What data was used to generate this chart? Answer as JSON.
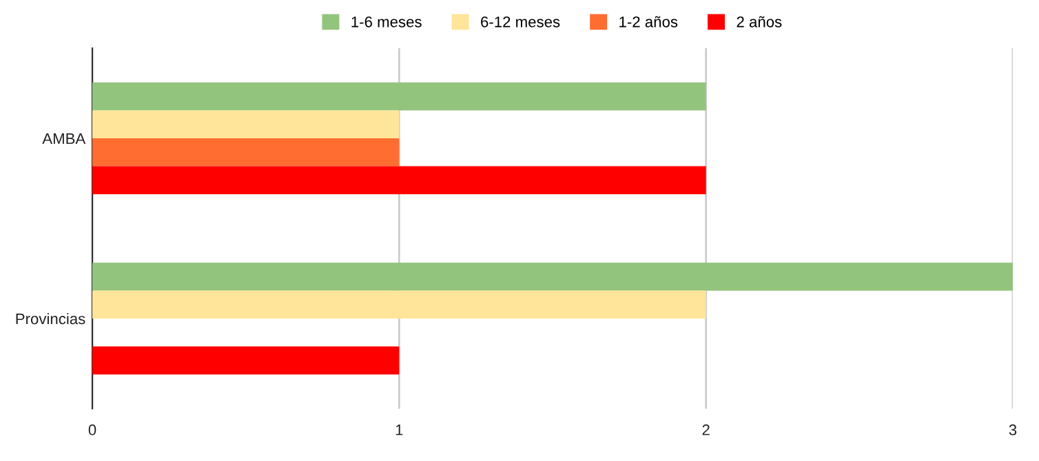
{
  "chart_data": {
    "type": "bar",
    "orientation": "horizontal",
    "categories": [
      "AMBA",
      "Provincias"
    ],
    "series": [
      {
        "name": "1-6 meses",
        "color": "#93c47d",
        "values": [
          2,
          3
        ]
      },
      {
        "name": "6-12 meses",
        "color": "#ffe599",
        "values": [
          1,
          2
        ]
      },
      {
        "name": "1-2 años",
        "color": "#ff6d31",
        "values": [
          1,
          0
        ]
      },
      {
        "name": "2 años",
        "color": "#ff0000",
        "values": [
          2,
          1
        ]
      }
    ],
    "xlim": [
      0,
      3
    ],
    "xticks": [
      0,
      1,
      2,
      3
    ],
    "grid": "x",
    "legend": "top"
  }
}
